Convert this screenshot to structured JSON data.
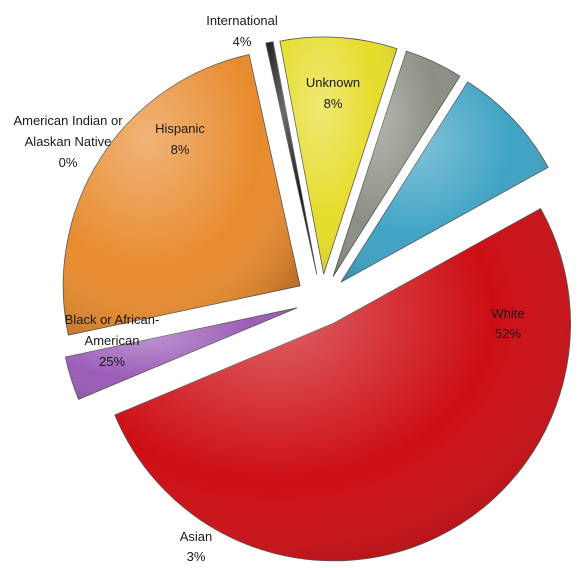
{
  "chart_data": {
    "type": "pie",
    "title": "",
    "style": "exploded-3d",
    "slices": [
      {
        "label": "White",
        "percent_label": "52%",
        "value": 52,
        "color": "#cc0e14"
      },
      {
        "label": "Asian",
        "percent_label": "3%",
        "value": 3,
        "color": "#9b5cb8"
      },
      {
        "label": "Black or African-American",
        "percent_label": "25%",
        "value": 25,
        "color": "#e88b2e"
      },
      {
        "label": "American Indian or Alaskan Native",
        "percent_label": "0%",
        "value": 0.5,
        "color": "#1a1a1a"
      },
      {
        "label": "Hispanic",
        "percent_label": "8%",
        "value": 8,
        "color": "#e6dc2a"
      },
      {
        "label": "International",
        "percent_label": "4%",
        "value": 4,
        "color": "#8a8f82"
      },
      {
        "label": "Unknown",
        "percent_label": "8%",
        "value": 8,
        "color": "#3fa3c4"
      }
    ],
    "labels": {
      "white": {
        "line1": "White",
        "line2": "52%"
      },
      "asian": {
        "line1": "Asian",
        "line2": "3%"
      },
      "black": {
        "line1": "Black or African-",
        "line2": "American",
        "line3": "25%"
      },
      "amind": {
        "line1": "American Indian or",
        "line2": "Alaskan Native",
        "line3": "0%"
      },
      "hispanic": {
        "line1": "Hispanic",
        "line2": "8%"
      },
      "international": {
        "line1": "International",
        "line2": "4%"
      },
      "unknown": {
        "line1": "Unknown",
        "line2": "8%"
      }
    }
  }
}
